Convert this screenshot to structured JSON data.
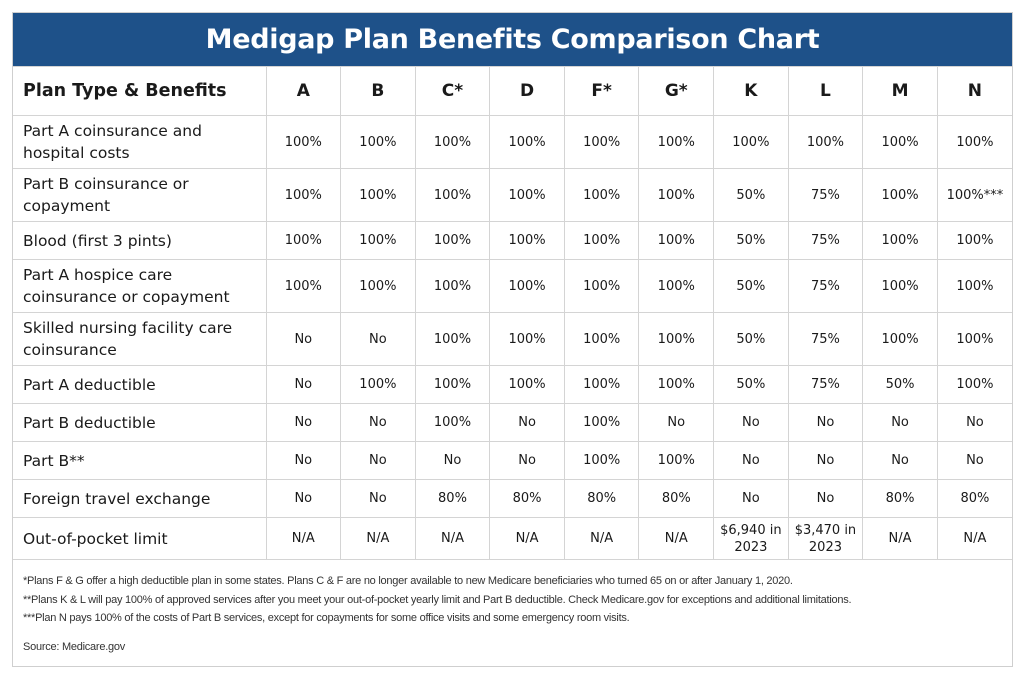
{
  "title": "Medigap Plan Benefits Comparison Chart",
  "table": {
    "header": [
      "Plan Type & Benefits",
      "A",
      "B",
      "C*",
      "D",
      "F*",
      "G*",
      "K",
      "L",
      "M",
      "N"
    ],
    "rows": [
      {
        "label": "Part A coinsurance and hospital costs",
        "size": "tall",
        "values": [
          "100%",
          "100%",
          "100%",
          "100%",
          "100%",
          "100%",
          "100%",
          "100%",
          "100%",
          "100%"
        ]
      },
      {
        "label": "Part B coinsurance or copayment",
        "size": "tall",
        "values": [
          "100%",
          "100%",
          "100%",
          "100%",
          "100%",
          "100%",
          "50%",
          "75%",
          "100%",
          "100%***"
        ]
      },
      {
        "label": "Blood (first 3 pints)",
        "size": "short",
        "values": [
          "100%",
          "100%",
          "100%",
          "100%",
          "100%",
          "100%",
          "50%",
          "75%",
          "100%",
          "100%"
        ]
      },
      {
        "label": "Part A hospice care coinsurance or copayment",
        "size": "tall",
        "values": [
          "100%",
          "100%",
          "100%",
          "100%",
          "100%",
          "100%",
          "50%",
          "75%",
          "100%",
          "100%"
        ]
      },
      {
        "label": "Skilled nursing facility care coinsurance",
        "size": "tall",
        "values": [
          "No",
          "No",
          "100%",
          "100%",
          "100%",
          "100%",
          "50%",
          "75%",
          "100%",
          "100%"
        ]
      },
      {
        "label": "Part A deductible",
        "size": "short",
        "values": [
          "No",
          "100%",
          "100%",
          "100%",
          "100%",
          "100%",
          "50%",
          "75%",
          "50%",
          "100%"
        ]
      },
      {
        "label": "Part B deductible",
        "size": "short",
        "values": [
          "No",
          "No",
          "100%",
          "No",
          "100%",
          "No",
          "No",
          "No",
          "No",
          "No"
        ]
      },
      {
        "label": "Part B**",
        "size": "short",
        "values": [
          "No",
          "No",
          "No",
          "No",
          "100%",
          "100%",
          "No",
          "No",
          "No",
          "No"
        ]
      },
      {
        "label": "Foreign travel exchange",
        "size": "short",
        "values": [
          "No",
          "No",
          "80%",
          "80%",
          "80%",
          "80%",
          "No",
          "No",
          "80%",
          "80%"
        ]
      },
      {
        "label": "Out-of-pocket limit",
        "size": "last",
        "values": [
          "N/A",
          "N/A",
          "N/A",
          "N/A",
          "N/A",
          "N/A",
          "$6,940 in 2023",
          "$3,470 in 2023",
          "N/A",
          "N/A"
        ]
      }
    ]
  },
  "footnotes": [
    "*Plans F & G offer a high deductible plan in some states. Plans C & F are no longer available to new Medicare beneficiaries who turned 65 on or after January 1, 2020.",
    "**Plans K & L will pay 100% of approved services after you meet your out-of-pocket yearly limit and Part B deductible. Check Medicare.gov for exceptions and additional limitations.",
    "***Plan N pays 100% of the costs of Part B services, except for copayments for some office visits and some emergency room visits."
  ],
  "source": "Source: Medicare.gov",
  "colors": {
    "title_bar": "#1e5189",
    "border": "#d4d4d4"
  }
}
